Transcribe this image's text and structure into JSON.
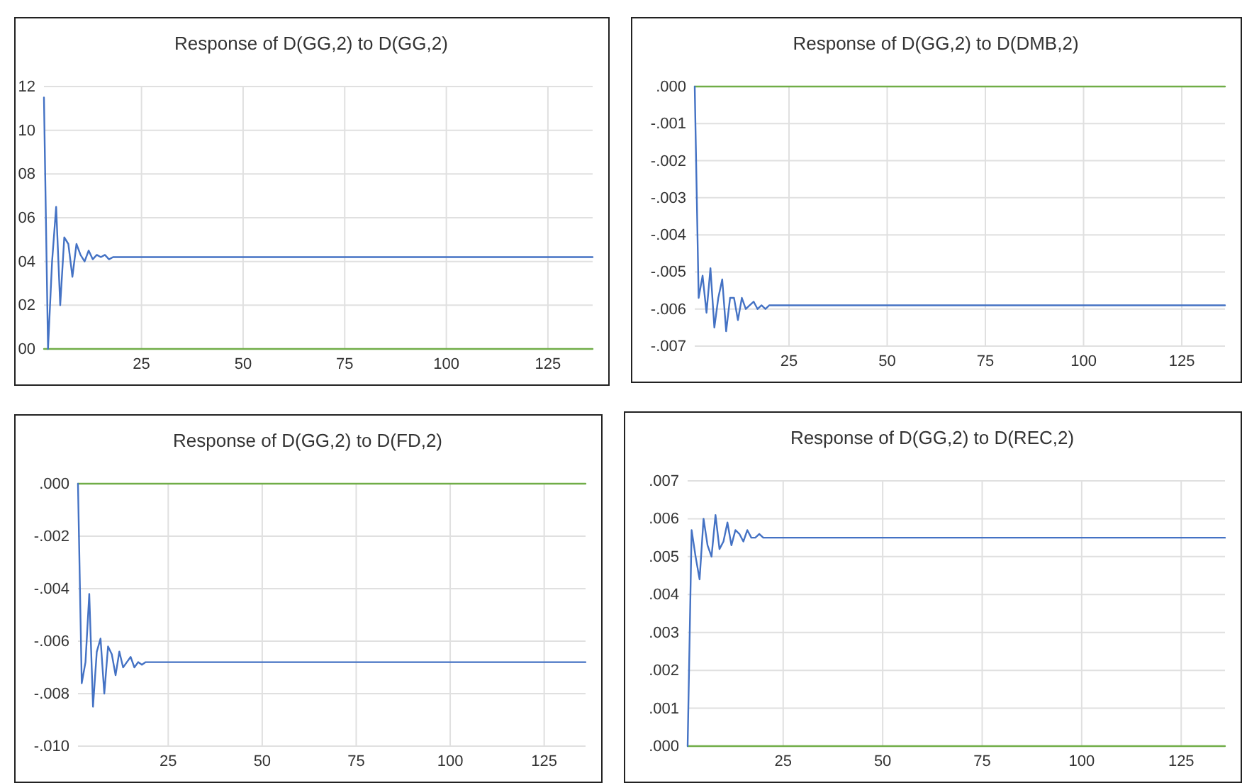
{
  "chart_data": [
    {
      "type": "line",
      "title": "Response of D(GG,2) to D(GG,2)",
      "x": [
        1,
        2,
        3,
        4,
        5,
        6,
        7,
        8,
        9,
        10,
        11,
        12,
        13,
        14,
        15,
        16,
        17,
        18,
        136
      ],
      "series": [
        {
          "color": "#4472c4",
          "values": [
            11.5,
            0,
            4,
            6.5,
            2,
            5.1,
            4.8,
            3.3,
            4.8,
            4.3,
            4,
            4.5,
            4.1,
            4.3,
            4.2,
            4.3,
            4.1,
            4.2,
            4.2
          ]
        },
        {
          "color": "#70ad47",
          "values": [
            0,
            0,
            0,
            0,
            0,
            0,
            0,
            0,
            0,
            0,
            0,
            0,
            0,
            0,
            0,
            0,
            0,
            0,
            0
          ]
        }
      ],
      "xlim": [
        1,
        136
      ],
      "xticks": [
        25,
        50,
        75,
        100,
        125
      ],
      "ylim": [
        0,
        12
      ],
      "yticks": [
        {
          "value": 0,
          "label": "00"
        },
        {
          "value": 2,
          "label": "02"
        },
        {
          "value": 4,
          "label": "04"
        },
        {
          "value": 6,
          "label": "06"
        },
        {
          "value": 8,
          "label": "08"
        },
        10,
        12
      ],
      "grid": true
    },
    {
      "type": "line",
      "title": "Response of D(GG,2) to D(DMB,2)",
      "x": [
        1,
        2,
        3,
        4,
        5,
        6,
        7,
        8,
        9,
        10,
        11,
        12,
        13,
        14,
        15,
        16,
        17,
        18,
        19,
        20,
        136
      ],
      "series": [
        {
          "color": "#4472c4",
          "values": [
            0.0,
            -0.0057,
            -0.0051,
            -0.0061,
            -0.0049,
            -0.0065,
            -0.0057,
            -0.0052,
            -0.0066,
            -0.0057,
            -0.0057,
            -0.0063,
            -0.0057,
            -0.006,
            -0.0059,
            -0.0058,
            -0.006,
            -0.0059,
            -0.006,
            -0.0059,
            -0.0059
          ]
        },
        {
          "color": "#70ad47",
          "values": [
            0,
            0,
            0,
            0,
            0,
            0,
            0,
            0,
            0,
            0,
            0,
            0,
            0,
            0,
            0,
            0,
            0,
            0,
            0,
            0,
            0
          ]
        }
      ],
      "xlim": [
        1,
        136
      ],
      "xticks": [
        25,
        50,
        75,
        100,
        125
      ],
      "ylim": [
        -0.007,
        0
      ],
      "yticks": [
        {
          "value": -0.007,
          "label": "-.007"
        },
        {
          "value": -0.006,
          "label": "-.006"
        },
        {
          "value": -0.005,
          "label": "-.005"
        },
        {
          "value": -0.004,
          "label": "-.004"
        },
        {
          "value": -0.003,
          "label": "-.003"
        },
        {
          "value": -0.002,
          "label": "-.002"
        },
        {
          "value": -0.001,
          "label": "-.001"
        },
        {
          "value": 0,
          "label": ".000"
        }
      ],
      "grid": true
    },
    {
      "type": "line",
      "title": "Response of D(GG,2) to D(FD,2)",
      "x": [
        1,
        2,
        3,
        4,
        5,
        6,
        7,
        8,
        9,
        10,
        11,
        12,
        13,
        14,
        15,
        16,
        17,
        18,
        19,
        20,
        136
      ],
      "series": [
        {
          "color": "#4472c4",
          "values": [
            0.0,
            -0.0076,
            -0.0068,
            -0.0042,
            -0.0085,
            -0.0064,
            -0.0059,
            -0.008,
            -0.0062,
            -0.0065,
            -0.0073,
            -0.0064,
            -0.007,
            -0.0068,
            -0.0066,
            -0.007,
            -0.0068,
            -0.0069,
            -0.0068,
            -0.0068,
            -0.0068
          ]
        },
        {
          "color": "#70ad47",
          "values": [
            0,
            0,
            0,
            0,
            0,
            0,
            0,
            0,
            0,
            0,
            0,
            0,
            0,
            0,
            0,
            0,
            0,
            0,
            0,
            0,
            0
          ]
        }
      ],
      "xlim": [
        1,
        136
      ],
      "xticks": [
        25,
        50,
        75,
        100,
        125
      ],
      "ylim": [
        -0.01,
        0
      ],
      "yticks": [
        {
          "value": -0.01,
          "label": "-.010"
        },
        {
          "value": -0.008,
          "label": "-.008"
        },
        {
          "value": -0.006,
          "label": "-.006"
        },
        {
          "value": -0.004,
          "label": "-.004"
        },
        {
          "value": -0.002,
          "label": "-.002"
        },
        {
          "value": 0,
          "label": ".000"
        }
      ],
      "grid": true
    },
    {
      "type": "line",
      "title": "Response of D(GG,2) to D(REC,2)",
      "x": [
        1,
        2,
        3,
        4,
        5,
        6,
        7,
        8,
        9,
        10,
        11,
        12,
        13,
        14,
        15,
        16,
        17,
        18,
        19,
        20,
        136
      ],
      "series": [
        {
          "color": "#4472c4",
          "values": [
            0.0,
            0.0057,
            0.005,
            0.0044,
            0.006,
            0.0053,
            0.005,
            0.0061,
            0.0052,
            0.0054,
            0.0059,
            0.0053,
            0.0057,
            0.0056,
            0.0054,
            0.0057,
            0.0055,
            0.0055,
            0.0056,
            0.0055,
            0.0055
          ]
        },
        {
          "color": "#70ad47",
          "values": [
            0,
            0,
            0,
            0,
            0,
            0,
            0,
            0,
            0,
            0,
            0,
            0,
            0,
            0,
            0,
            0,
            0,
            0,
            0,
            0,
            0
          ]
        }
      ],
      "xlim": [
        1,
        136
      ],
      "xticks": [
        25,
        50,
        75,
        100,
        125
      ],
      "ylim": [
        0,
        0.007
      ],
      "yticks": [
        {
          "value": 0,
          "label": ".000"
        },
        {
          "value": 0.001,
          "label": ".001"
        },
        {
          "value": 0.002,
          "label": ".002"
        },
        {
          "value": 0.003,
          "label": ".003"
        },
        {
          "value": 0.004,
          "label": ".004"
        },
        {
          "value": 0.005,
          "label": ".005"
        },
        {
          "value": 0.006,
          "label": ".006"
        },
        {
          "value": 0.007,
          "label": ".007"
        }
      ],
      "grid": true
    }
  ]
}
